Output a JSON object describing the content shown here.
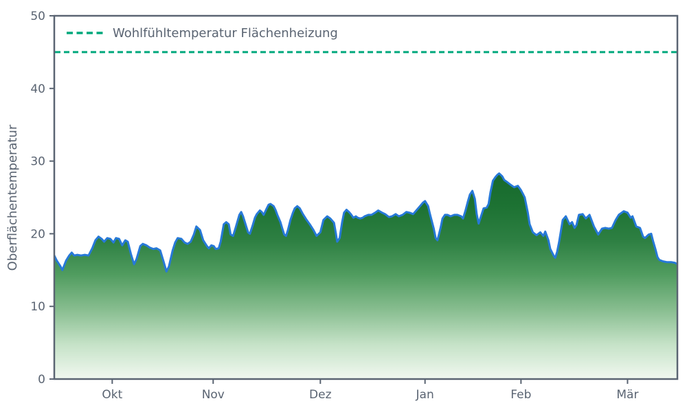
{
  "chart_data": {
    "type": "area",
    "title": "",
    "xlabel": "",
    "ylabel": "Oberflächentemperatur",
    "ylim": [
      0,
      50
    ],
    "y_ticks": [
      0,
      10,
      20,
      30,
      40,
      50
    ],
    "x_ticks": [
      {
        "label": "Okt",
        "pos": 0.093
      },
      {
        "label": "Nov",
        "pos": 0.255
      },
      {
        "label": "Dez",
        "pos": 0.427
      },
      {
        "label": "Jan",
        "pos": 0.595
      },
      {
        "label": "Feb",
        "pos": 0.749
      },
      {
        "label": "Mär",
        "pos": 0.92
      }
    ],
    "grid": false,
    "legend_position": "upper left",
    "threshold": {
      "label": "Wohlfühltemperatur Flächenheizung",
      "value": 45,
      "line_style": "dashed",
      "color": "#00a87c"
    },
    "colors": {
      "axis": "#5a6472",
      "line": "#2779d8",
      "fill_top": "#17692d",
      "fill_bottom": "#f1f8f0"
    },
    "series": [
      {
        "name": "Oberflächentemperatur",
        "line_color": "#2779d8",
        "fill": "green-vertical-gradient",
        "points": [
          [
            0.0,
            17.0
          ],
          [
            0.004,
            16.3
          ],
          [
            0.01,
            15.5
          ],
          [
            0.013,
            15.0
          ],
          [
            0.019,
            16.3
          ],
          [
            0.024,
            17.0
          ],
          [
            0.028,
            17.4
          ],
          [
            0.032,
            17.0
          ],
          [
            0.037,
            17.1
          ],
          [
            0.043,
            17.0
          ],
          [
            0.049,
            17.1
          ],
          [
            0.055,
            17.0
          ],
          [
            0.061,
            18.0
          ],
          [
            0.066,
            19.1
          ],
          [
            0.071,
            19.6
          ],
          [
            0.076,
            19.3
          ],
          [
            0.08,
            18.9
          ],
          [
            0.085,
            19.4
          ],
          [
            0.09,
            19.3
          ],
          [
            0.095,
            18.8
          ],
          [
            0.099,
            19.4
          ],
          [
            0.104,
            19.3
          ],
          [
            0.109,
            18.4
          ],
          [
            0.114,
            19.1
          ],
          [
            0.118,
            18.9
          ],
          [
            0.123,
            17.2
          ],
          [
            0.128,
            15.8
          ],
          [
            0.132,
            16.5
          ],
          [
            0.138,
            18.3
          ],
          [
            0.142,
            18.6
          ],
          [
            0.148,
            18.4
          ],
          [
            0.153,
            18.1
          ],
          [
            0.159,
            17.9
          ],
          [
            0.164,
            18.0
          ],
          [
            0.17,
            17.7
          ],
          [
            0.175,
            16.3
          ],
          [
            0.18,
            14.8
          ],
          [
            0.184,
            15.5
          ],
          [
            0.19,
            17.7
          ],
          [
            0.194,
            18.8
          ],
          [
            0.198,
            19.4
          ],
          [
            0.204,
            19.3
          ],
          [
            0.209,
            18.8
          ],
          [
            0.214,
            18.6
          ],
          [
            0.219,
            18.9
          ],
          [
            0.224,
            19.9
          ],
          [
            0.228,
            21.0
          ],
          [
            0.234,
            20.5
          ],
          [
            0.239,
            19.1
          ],
          [
            0.245,
            18.3
          ],
          [
            0.248,
            18.0
          ],
          [
            0.252,
            18.4
          ],
          [
            0.256,
            18.3
          ],
          [
            0.259,
            17.9
          ],
          [
            0.264,
            18.0
          ],
          [
            0.267,
            18.9
          ],
          [
            0.272,
            21.3
          ],
          [
            0.276,
            21.6
          ],
          [
            0.28,
            21.3
          ],
          [
            0.283,
            19.9
          ],
          [
            0.287,
            19.7
          ],
          [
            0.291,
            20.8
          ],
          [
            0.297,
            22.6
          ],
          [
            0.3,
            23.0
          ],
          [
            0.303,
            22.4
          ],
          [
            0.308,
            21.0
          ],
          [
            0.311,
            20.2
          ],
          [
            0.314,
            20.0
          ],
          [
            0.319,
            21.3
          ],
          [
            0.322,
            22.2
          ],
          [
            0.325,
            22.7
          ],
          [
            0.33,
            23.2
          ],
          [
            0.333,
            23.0
          ],
          [
            0.336,
            22.6
          ],
          [
            0.341,
            23.5
          ],
          [
            0.344,
            24.0
          ],
          [
            0.347,
            24.1
          ],
          [
            0.352,
            23.8
          ],
          [
            0.355,
            23.3
          ],
          [
            0.358,
            22.6
          ],
          [
            0.363,
            21.6
          ],
          [
            0.366,
            20.7
          ],
          [
            0.369,
            19.9
          ],
          [
            0.372,
            19.7
          ],
          [
            0.375,
            20.5
          ],
          [
            0.379,
            21.9
          ],
          [
            0.383,
            22.9
          ],
          [
            0.386,
            23.5
          ],
          [
            0.39,
            23.8
          ],
          [
            0.394,
            23.5
          ],
          [
            0.399,
            22.7
          ],
          [
            0.405,
            21.9
          ],
          [
            0.41,
            21.3
          ],
          [
            0.416,
            20.5
          ],
          [
            0.421,
            19.7
          ],
          [
            0.427,
            20.2
          ],
          [
            0.432,
            21.9
          ],
          [
            0.438,
            22.4
          ],
          [
            0.443,
            22.1
          ],
          [
            0.449,
            21.5
          ],
          [
            0.452,
            20.0
          ],
          [
            0.454,
            18.9
          ],
          [
            0.458,
            19.4
          ],
          [
            0.462,
            21.6
          ],
          [
            0.465,
            22.9
          ],
          [
            0.469,
            23.3
          ],
          [
            0.473,
            23.0
          ],
          [
            0.476,
            22.7
          ],
          [
            0.48,
            22.2
          ],
          [
            0.484,
            22.4
          ],
          [
            0.487,
            22.2
          ],
          [
            0.491,
            22.1
          ],
          [
            0.495,
            22.2
          ],
          [
            0.498,
            22.4
          ],
          [
            0.504,
            22.6
          ],
          [
            0.509,
            22.6
          ],
          [
            0.515,
            22.9
          ],
          [
            0.52,
            23.2
          ],
          [
            0.526,
            22.9
          ],
          [
            0.531,
            22.7
          ],
          [
            0.537,
            22.3
          ],
          [
            0.542,
            22.4
          ],
          [
            0.548,
            22.7
          ],
          [
            0.553,
            22.4
          ],
          [
            0.559,
            22.6
          ],
          [
            0.565,
            23.0
          ],
          [
            0.57,
            22.9
          ],
          [
            0.576,
            22.7
          ],
          [
            0.581,
            23.2
          ],
          [
            0.587,
            23.8
          ],
          [
            0.592,
            24.3
          ],
          [
            0.595,
            24.5
          ],
          [
            0.6,
            23.8
          ],
          [
            0.603,
            22.7
          ],
          [
            0.609,
            20.7
          ],
          [
            0.612,
            19.4
          ],
          [
            0.615,
            19.1
          ],
          [
            0.62,
            20.8
          ],
          [
            0.623,
            22.1
          ],
          [
            0.627,
            22.6
          ],
          [
            0.631,
            22.6
          ],
          [
            0.636,
            22.4
          ],
          [
            0.642,
            22.6
          ],
          [
            0.647,
            22.6
          ],
          [
            0.653,
            22.4
          ],
          [
            0.656,
            22.1
          ],
          [
            0.66,
            23.2
          ],
          [
            0.664,
            24.5
          ],
          [
            0.667,
            25.4
          ],
          [
            0.671,
            25.9
          ],
          [
            0.675,
            24.8
          ],
          [
            0.678,
            22.7
          ],
          [
            0.681,
            21.4
          ],
          [
            0.686,
            22.7
          ],
          [
            0.689,
            23.5
          ],
          [
            0.694,
            23.6
          ],
          [
            0.697,
            24.1
          ],
          [
            0.7,
            25.7
          ],
          [
            0.704,
            27.3
          ],
          [
            0.708,
            27.8
          ],
          [
            0.711,
            28.1
          ],
          [
            0.714,
            28.3
          ],
          [
            0.719,
            27.9
          ],
          [
            0.722,
            27.4
          ],
          [
            0.727,
            27.1
          ],
          [
            0.73,
            26.9
          ],
          [
            0.733,
            26.7
          ],
          [
            0.738,
            26.4
          ],
          [
            0.741,
            26.5
          ],
          [
            0.744,
            26.6
          ],
          [
            0.749,
            26.0
          ],
          [
            0.752,
            25.5
          ],
          [
            0.755,
            25.0
          ],
          [
            0.76,
            22.9
          ],
          [
            0.763,
            21.3
          ],
          [
            0.768,
            20.2
          ],
          [
            0.774,
            19.8
          ],
          [
            0.78,
            20.2
          ],
          [
            0.785,
            19.7
          ],
          [
            0.788,
            20.3
          ],
          [
            0.793,
            19.1
          ],
          [
            0.796,
            17.9
          ],
          [
            0.802,
            16.9
          ],
          [
            0.804,
            16.7
          ],
          [
            0.807,
            17.5
          ],
          [
            0.81,
            18.8
          ],
          [
            0.816,
            21.9
          ],
          [
            0.821,
            22.4
          ],
          [
            0.827,
            21.3
          ],
          [
            0.831,
            21.6
          ],
          [
            0.835,
            20.8
          ],
          [
            0.838,
            21.2
          ],
          [
            0.842,
            22.6
          ],
          [
            0.848,
            22.7
          ],
          [
            0.853,
            22.1
          ],
          [
            0.859,
            22.6
          ],
          [
            0.866,
            21.0
          ],
          [
            0.873,
            19.9
          ],
          [
            0.879,
            20.7
          ],
          [
            0.884,
            20.8
          ],
          [
            0.89,
            20.7
          ],
          [
            0.895,
            20.8
          ],
          [
            0.901,
            21.9
          ],
          [
            0.906,
            22.6
          ],
          [
            0.914,
            23.1
          ],
          [
            0.92,
            22.9
          ],
          [
            0.925,
            22.2
          ],
          [
            0.928,
            22.4
          ],
          [
            0.934,
            21.0
          ],
          [
            0.94,
            20.8
          ],
          [
            0.945,
            19.6
          ],
          [
            0.948,
            19.4
          ],
          [
            0.954,
            19.9
          ],
          [
            0.958,
            20.0
          ],
          [
            0.961,
            19.0
          ],
          [
            0.965,
            17.8
          ],
          [
            0.968,
            16.8
          ],
          [
            0.971,
            16.4
          ],
          [
            0.977,
            16.2
          ],
          [
            0.983,
            16.1
          ],
          [
            0.99,
            16.1
          ],
          [
            0.996,
            16.0
          ],
          [
            1.0,
            15.8
          ]
        ]
      }
    ]
  }
}
